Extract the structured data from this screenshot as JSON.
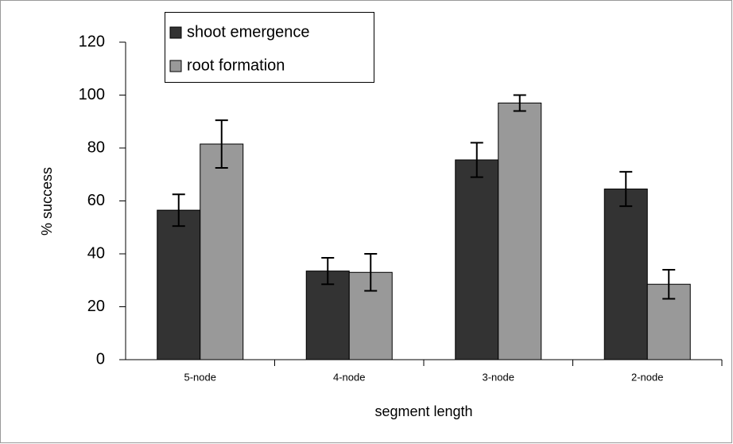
{
  "chart_data": {
    "type": "bar",
    "xlabel": "segment length",
    "ylabel": "% success",
    "categories": [
      "5-node",
      "4-node",
      "3-node",
      "2-node"
    ],
    "series": [
      {
        "name": "shoot emergence",
        "color": "#333333",
        "values": [
          56.5,
          33.5,
          75.5,
          64.5
        ],
        "errors": [
          6,
          5,
          6.5,
          6.5
        ]
      },
      {
        "name": "root formation",
        "color": "#999999",
        "values": [
          81.5,
          33,
          97,
          28.5
        ],
        "errors": [
          9,
          7,
          3,
          5.5
        ]
      }
    ],
    "ylim": [
      0,
      120
    ],
    "yticks": [
      0,
      20,
      40,
      60,
      80,
      100,
      120
    ],
    "grid": false,
    "legend": "upper left"
  }
}
